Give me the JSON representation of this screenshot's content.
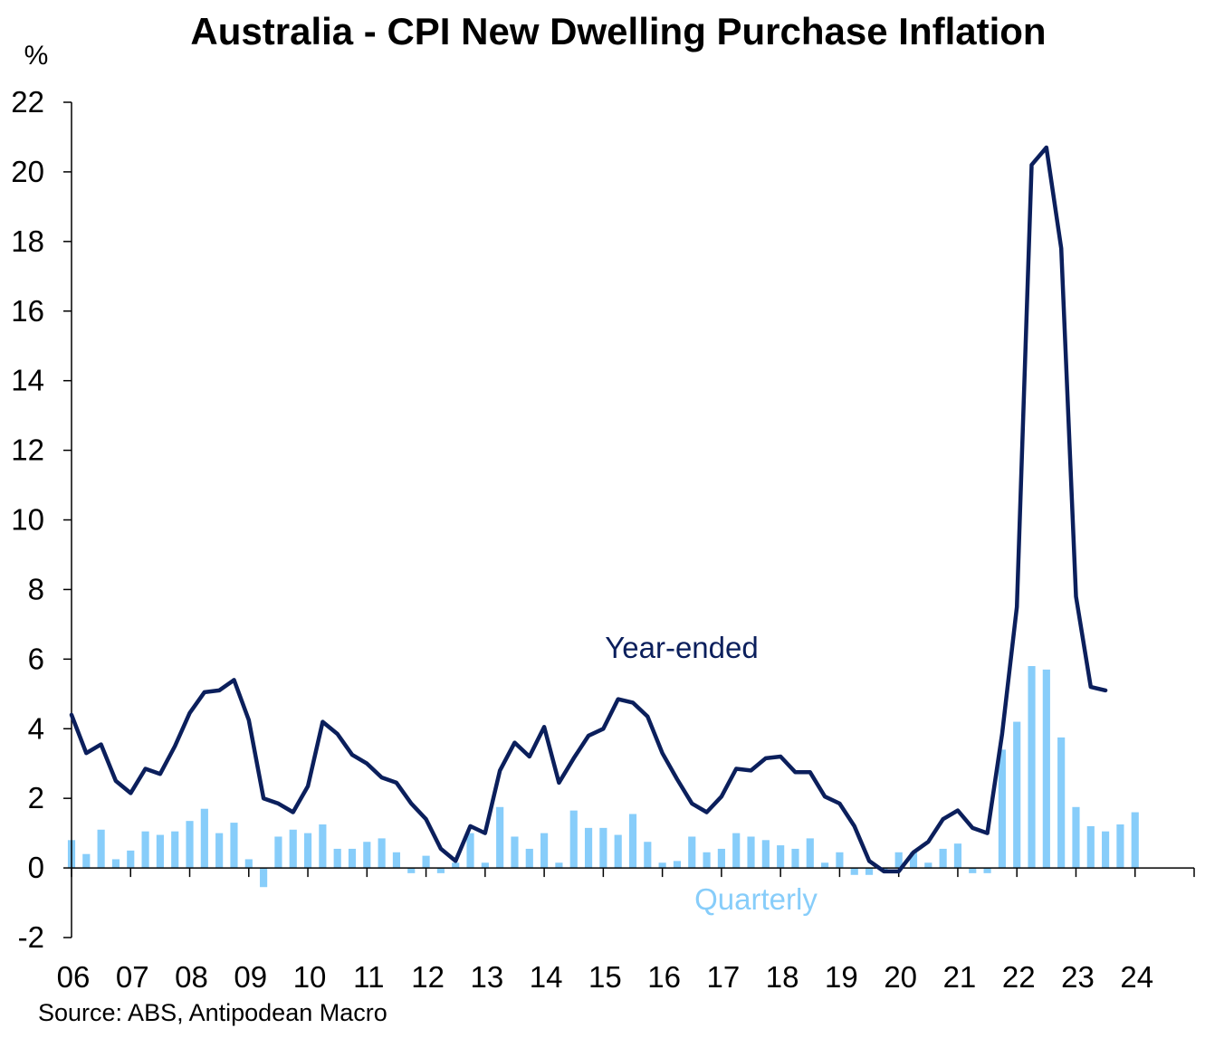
{
  "chart_data": {
    "type": "bar",
    "title": "Australia - CPI New Dwelling Purchase Inflation",
    "ylabel": "%",
    "ylim": [
      -2,
      22
    ],
    "yticks": [
      -2,
      0,
      2,
      4,
      6,
      8,
      10,
      12,
      14,
      16,
      18,
      20,
      22
    ],
    "xlim": [
      2006,
      2025
    ],
    "x_tick_labels": [
      "06",
      "07",
      "08",
      "09",
      "10",
      "11",
      "12",
      "13",
      "14",
      "15",
      "16",
      "17",
      "18",
      "19",
      "20",
      "21",
      "22",
      "23",
      "24"
    ],
    "grid": false,
    "source": "Source: ABS, Antipodean Macro",
    "colors": {
      "year_ended": "#0b1f5c",
      "quarterly": "#87cdfa",
      "axis": "#000000"
    },
    "series": [
      {
        "name": "Quarterly",
        "type": "bar",
        "label": "Quarterly",
        "x": [
          2006.0,
          2006.25,
          2006.5,
          2006.75,
          2007.0,
          2007.25,
          2007.5,
          2007.75,
          2008.0,
          2008.25,
          2008.5,
          2008.75,
          2009.0,
          2009.25,
          2009.5,
          2009.75,
          2010.0,
          2010.25,
          2010.5,
          2010.75,
          2011.0,
          2011.25,
          2011.5,
          2011.75,
          2012.0,
          2012.25,
          2012.5,
          2012.75,
          2013.0,
          2013.25,
          2013.5,
          2013.75,
          2014.0,
          2014.25,
          2014.5,
          2014.75,
          2015.0,
          2015.25,
          2015.5,
          2015.75,
          2016.0,
          2016.25,
          2016.5,
          2016.75,
          2017.0,
          2017.25,
          2017.5,
          2017.75,
          2018.0,
          2018.25,
          2018.5,
          2018.75,
          2019.0,
          2019.25,
          2019.5,
          2019.75,
          2020.0,
          2020.25,
          2020.5,
          2020.75,
          2021.0,
          2021.25,
          2021.5,
          2021.75,
          2022.0,
          2022.25,
          2022.5,
          2022.75,
          2023.0,
          2023.25,
          2023.5,
          2023.75,
          2024.0
        ],
        "values": [
          0.8,
          0.4,
          1.1,
          0.25,
          0.5,
          1.05,
          0.95,
          1.05,
          1.35,
          1.7,
          1.0,
          1.3,
          0.25,
          -0.55,
          0.9,
          1.1,
          1.0,
          1.25,
          0.55,
          0.55,
          0.75,
          0.85,
          0.45,
          -0.15,
          0.35,
          -0.15,
          0.15,
          1.0,
          0.15,
          1.75,
          0.9,
          0.55,
          1.0,
          0.15,
          1.65,
          1.15,
          1.15,
          0.95,
          1.55,
          0.75,
          0.15,
          0.2,
          0.9,
          0.45,
          0.55,
          1.0,
          0.9,
          0.8,
          0.65,
          0.55,
          0.85,
          0.15,
          0.45,
          -0.2,
          -0.2,
          -0.1,
          0.45,
          0.45,
          0.15,
          0.55,
          0.7,
          -0.15,
          -0.15,
          3.4,
          4.2,
          5.8,
          5.7,
          3.75,
          1.75,
          1.2,
          1.05,
          1.25,
          1.6
        ]
      },
      {
        "name": "Year-ended",
        "type": "line",
        "label": "Year-ended",
        "x": [
          2006.0,
          2006.25,
          2006.5,
          2006.75,
          2007.0,
          2007.25,
          2007.5,
          2007.75,
          2008.0,
          2008.25,
          2008.5,
          2008.75,
          2009.0,
          2009.25,
          2009.5,
          2009.75,
          2010.0,
          2010.25,
          2010.5,
          2010.75,
          2011.0,
          2011.25,
          2011.5,
          2011.75,
          2012.0,
          2012.25,
          2012.5,
          2012.75,
          2013.0,
          2013.25,
          2013.5,
          2013.75,
          2014.0,
          2014.25,
          2014.5,
          2014.75,
          2015.0,
          2015.25,
          2015.5,
          2015.75,
          2016.0,
          2016.25,
          2016.5,
          2016.75,
          2017.0,
          2017.25,
          2017.5,
          2017.75,
          2018.0,
          2018.25,
          2018.5,
          2018.75,
          2019.0,
          2019.25,
          2019.5,
          2019.75,
          2020.0,
          2020.25,
          2020.5,
          2020.75,
          2021.0,
          2021.25,
          2021.5,
          2021.75,
          2022.0,
          2022.25,
          2022.5,
          2022.75,
          2023.0,
          2023.25,
          2023.5,
          2023.75,
          2024.0
        ],
        "values": [
          4.4,
          3.3,
          3.55,
          2.5,
          2.15,
          2.85,
          2.7,
          3.5,
          4.45,
          5.05,
          5.1,
          5.4,
          4.25,
          2.0,
          1.85,
          1.6,
          2.35,
          4.2,
          3.85,
          3.25,
          3.0,
          2.6,
          2.45,
          1.85,
          1.4,
          0.55,
          0.2,
          1.2,
          1.0,
          2.8,
          3.6,
          3.2,
          4.05,
          2.45,
          3.15,
          3.8,
          4.0,
          4.85,
          4.75,
          4.35,
          3.3,
          2.55,
          1.85,
          1.6,
          2.05,
          2.85,
          2.8,
          3.15,
          3.2,
          2.75,
          2.75,
          2.05,
          1.85,
          1.2,
          0.2,
          -0.1,
          -0.1,
          0.45,
          0.75,
          1.4,
          1.65,
          1.15,
          1.0,
          3.85,
          7.5,
          20.2,
          20.7,
          17.8,
          7.8,
          5.2,
          5.1,
          null,
          null
        ]
      }
    ]
  }
}
